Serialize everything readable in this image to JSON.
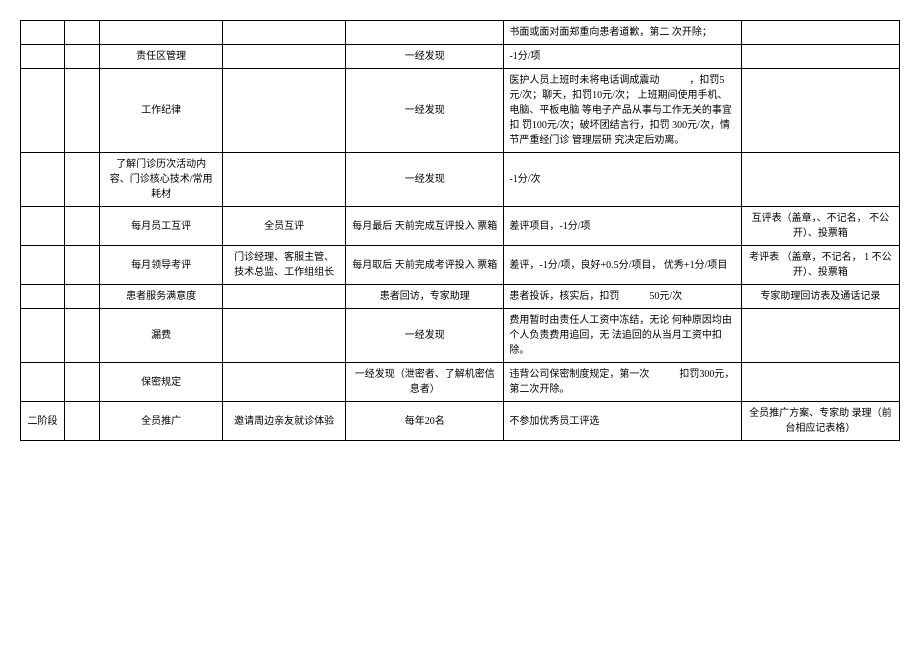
{
  "rows": [
    {
      "c1": "",
      "c2": "",
      "c3": "",
      "c4": "",
      "c5": "",
      "c6": "书面或面对面郑重向患者道歉，第二 次开除；",
      "c7": ""
    },
    {
      "c1": "",
      "c2": "",
      "c3": "责任区管理",
      "c4": "",
      "c5": "一经发现",
      "c6": "-1分/项",
      "c7": ""
    },
    {
      "c1": "",
      "c2": "",
      "c3": "工作纪律",
      "c4": "",
      "c5": "一经发现",
      "c6": "医护人员上班时未将电话调成震动　　　，扣罚5元/次；聊天，扣罚10元/次； 上班期间使用手机、电脑、平板电脑 等电子产品从事与工作无关的事宜扣 罚100元/次；破坏团结言行，扣罚\n300元/次，情节严重经门诊 管理层研 究决定后劝离。",
      "c7": ""
    },
    {
      "c1": "",
      "c2": "",
      "c3": "了解门诊历次活动内 容、门诊核心技术/常用 耗材",
      "c4": "",
      "c5": "一经发现",
      "c6": "-1分/次",
      "c7": ""
    },
    {
      "c1": "",
      "c2": "",
      "c3": "每月员工互评",
      "c4": "全员互评",
      "c5": "每月最后 天前完成互评投入 票箱",
      "c6": "差评项目，-1分/项",
      "c7": "互评表（盖章，、不记名， 不公开）、投票箱"
    },
    {
      "c1": "",
      "c2": "",
      "c3": "每月领导考评",
      "c4": "门诊经理、客服主管、 技术总监、工作组组长",
      "c5": "每月取后 天前完成考评投入 票箱",
      "c6": "差评，-1分/项，良好+0.5分/项目， 优秀+1分/项目",
      "c7": "考评表 （盖章，不记名， 1\n不公 开）、投票箱"
    },
    {
      "c1": "",
      "c2": "",
      "c3": "患者服务满意度",
      "c4": "",
      "c5": "患者回访，专家助理",
      "c6": "患者投诉，核实后，扣罚　　　50元/次",
      "c7": "专家助理回访表及通话记录"
    },
    {
      "c1": "",
      "c2": "",
      "c3": "漏费",
      "c4": "",
      "c5": "一经发现",
      "c6": "费用暂时由责任人工资中冻结，无论 何种原因均由个人负责费用追回，无 法追回的从当月工资中扣除。",
      "c7": ""
    },
    {
      "c1": "",
      "c2": "",
      "c3": "保密规定",
      "c4": "",
      "c5": "一经发现（泄密者、了解机密信 息者）",
      "c6": "违背公司保密制度规定，第一次　　　扣罚300元，第二次开除。",
      "c7": ""
    },
    {
      "c1": "二阶段",
      "c2": "",
      "c3": "全员推广",
      "c4": "邀请周边亲友就诊体验",
      "c5": "每年20名",
      "c6": "不参加优秀员工评选",
      "c7": "全员推广方案、专家助 录理（前台相应记表格）"
    }
  ]
}
